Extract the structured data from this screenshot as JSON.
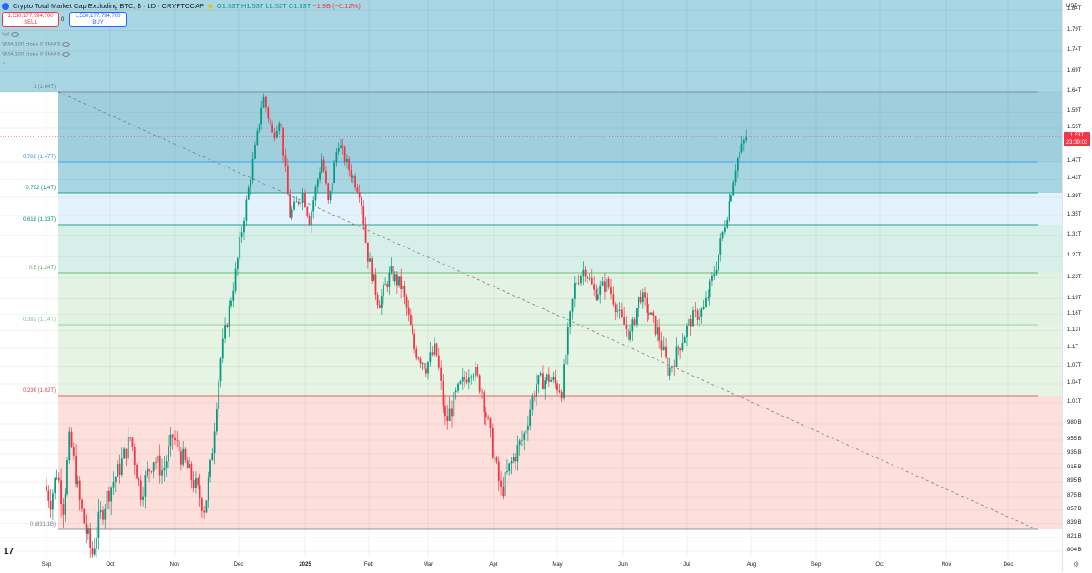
{
  "header": {
    "title": "Crypto Total Market Cap Excluding BTC, $ · 1D · CRYPTOCAP",
    "ohlc": {
      "open": "O1.53T",
      "high": "H1.53T",
      "low": "L1.52T",
      "close": "C1.53T",
      "change": "−1.9B (−0.12%)"
    }
  },
  "trade": {
    "sell_price": "1,530,177,794,700",
    "sell_label": "SELL",
    "spread": "0",
    "buy_price": "1,530,177,794,700",
    "buy_label": "BUY"
  },
  "indicators": [
    {
      "label": "Vol"
    },
    {
      "label": "SMA 100 close 0 SMA 5"
    },
    {
      "label": "SMA 200 close 0 SMA 5"
    }
  ],
  "price_axis": {
    "currency": "USD",
    "current_price": "1.53T",
    "countdown": "23:39:03",
    "ticks": [
      {
        "label": "1.84T",
        "value": 1.84
      },
      {
        "label": "1.79T",
        "value": 1.79
      },
      {
        "label": "1.74T",
        "value": 1.74
      },
      {
        "label": "1.69T",
        "value": 1.69
      },
      {
        "label": "1.64T",
        "value": 1.64
      },
      {
        "label": "1.59T",
        "value": 1.59
      },
      {
        "label": "1.55T",
        "value": 1.55
      },
      {
        "label": "1.47T",
        "value": 1.47
      },
      {
        "label": "1.43T",
        "value": 1.43
      },
      {
        "label": "1.39T",
        "value": 1.39
      },
      {
        "label": "1.35T",
        "value": 1.35
      },
      {
        "label": "1.31T",
        "value": 1.31
      },
      {
        "label": "1.27T",
        "value": 1.27
      },
      {
        "label": "1.23T",
        "value": 1.23
      },
      {
        "label": "1.19T",
        "value": 1.19
      },
      {
        "label": "1.16T",
        "value": 1.16
      },
      {
        "label": "1.13T",
        "value": 1.13
      },
      {
        "label": "1.1T",
        "value": 1.1
      },
      {
        "label": "1.07T",
        "value": 1.07
      },
      {
        "label": "1.04T",
        "value": 1.04
      },
      {
        "label": "1.01T",
        "value": 1.01
      },
      {
        "label": "980 B",
        "value": 0.98
      },
      {
        "label": "955 B",
        "value": 0.955
      },
      {
        "label": "935 B",
        "value": 0.935
      },
      {
        "label": "915 B",
        "value": 0.915
      },
      {
        "label": "895 B",
        "value": 0.895
      },
      {
        "label": "875 B",
        "value": 0.875
      },
      {
        "label": "857 B",
        "value": 0.857
      },
      {
        "label": "839 B",
        "value": 0.839
      },
      {
        "label": "821 B",
        "value": 0.821
      },
      {
        "label": "804 B",
        "value": 0.804
      }
    ]
  },
  "time_axis": {
    "labels": [
      {
        "label": "Sep",
        "month_index": 0,
        "bold": false
      },
      {
        "label": "Oct",
        "month_index": 1,
        "bold": false
      },
      {
        "label": "Nov",
        "month_index": 2,
        "bold": false
      },
      {
        "label": "Dec",
        "month_index": 3,
        "bold": false
      },
      {
        "label": "2025",
        "month_index": 4,
        "bold": true
      },
      {
        "label": "Feb",
        "month_index": 5,
        "bold": false
      },
      {
        "label": "Mar",
        "month_index": 6,
        "bold": false
      },
      {
        "label": "Apr",
        "month_index": 7,
        "bold": false
      },
      {
        "label": "May",
        "month_index": 8,
        "bold": false
      },
      {
        "label": "Jun",
        "month_index": 9,
        "bold": false
      },
      {
        "label": "Jul",
        "month_index": 10,
        "bold": false
      },
      {
        "label": "Aug",
        "month_index": 11,
        "bold": false
      },
      {
        "label": "Sep",
        "month_index": 12,
        "bold": false
      },
      {
        "label": "Oct",
        "month_index": 13,
        "bold": false
      },
      {
        "label": "Nov",
        "month_index": 14,
        "bold": false
      },
      {
        "label": "Dec",
        "month_index": 15,
        "bold": false
      }
    ]
  },
  "fib_levels": [
    {
      "label": "1 (1.64T)",
      "value": 1.64,
      "color": "#787b86",
      "zone": "#9fcfdd"
    },
    {
      "label": "0.786 (1.47T)",
      "value": 1.47,
      "color": "#2196f3",
      "zone": "#a8d5e2"
    },
    {
      "label": "0.702 (1.4T)",
      "value": 1.4,
      "color": "#00897b",
      "zone": "#e3f2fd"
    },
    {
      "label": "0.618 (1.33T)",
      "value": 1.33,
      "color": "#00897b",
      "zone": "#d7efe9"
    },
    {
      "label": "0.5 (1.24T)",
      "value": 1.24,
      "color": "#4caf50",
      "zone": "#e3f3e3"
    },
    {
      "label": "0.382 (1.14T)",
      "value": 1.14,
      "color": "#81c784",
      "zone": "#e6f4e4"
    },
    {
      "label": "0.236 (1.02T)",
      "value": 1.02,
      "color": "#f23645",
      "zone": "#fde0dc"
    },
    {
      "label": "0 (831.1B)",
      "value": 0.8311,
      "color": "#787b86",
      "zone": null
    }
  ],
  "colors": {
    "up": "#089981",
    "down": "#f23645",
    "top_zone": "#a8d6e3",
    "trend_line": "#787b86"
  },
  "chart_data": {
    "type": "candlestick",
    "x_range": [
      "2024-08-20",
      "2025-12-31"
    ],
    "y_range_T": [
      0.79,
      1.88
    ],
    "trend_line": {
      "from": {
        "month_index": 0.0,
        "value": 1.64
      },
      "to": {
        "month_index": 15.5,
        "value": 0.831
      }
    },
    "path_T": [
      [
        0.0,
        0.89
      ],
      [
        0.1,
        0.87
      ],
      [
        0.2,
        0.91
      ],
      [
        0.3,
        0.86
      ],
      [
        0.4,
        0.96
      ],
      [
        0.55,
        0.87
      ],
      [
        0.65,
        0.83
      ],
      [
        0.75,
        0.8
      ],
      [
        0.85,
        0.84
      ],
      [
        1.0,
        0.88
      ],
      [
        1.2,
        0.92
      ],
      [
        1.35,
        0.96
      ],
      [
        1.5,
        0.88
      ],
      [
        1.7,
        0.93
      ],
      [
        1.85,
        0.91
      ],
      [
        2.0,
        0.96
      ],
      [
        2.2,
        0.92
      ],
      [
        2.35,
        0.89
      ],
      [
        2.5,
        0.86
      ],
      [
        2.6,
        0.92
      ],
      [
        2.75,
        1.08
      ],
      [
        2.9,
        1.18
      ],
      [
        3.0,
        1.25
      ],
      [
        3.15,
        1.38
      ],
      [
        3.3,
        1.52
      ],
      [
        3.4,
        1.63
      ],
      [
        3.55,
        1.53
      ],
      [
        3.65,
        1.58
      ],
      [
        3.8,
        1.35
      ],
      [
        4.0,
        1.4
      ],
      [
        4.1,
        1.34
      ],
      [
        4.3,
        1.48
      ],
      [
        4.4,
        1.37
      ],
      [
        4.55,
        1.52
      ],
      [
        4.7,
        1.46
      ],
      [
        4.9,
        1.4
      ],
      [
        5.0,
        1.28
      ],
      [
        5.2,
        1.18
      ],
      [
        5.4,
        1.24
      ],
      [
        5.6,
        1.21
      ],
      [
        5.8,
        1.1
      ],
      [
        6.0,
        1.07
      ],
      [
        6.15,
        1.1
      ],
      [
        6.3,
        0.98
      ],
      [
        6.5,
        1.03
      ],
      [
        6.7,
        1.07
      ],
      [
        6.85,
        1.03
      ],
      [
        7.0,
        0.95
      ],
      [
        7.15,
        0.88
      ],
      [
        7.3,
        0.92
      ],
      [
        7.5,
        0.96
      ],
      [
        7.7,
        1.04
      ],
      [
        7.9,
        1.05
      ],
      [
        8.1,
        1.03
      ],
      [
        8.3,
        1.22
      ],
      [
        8.45,
        1.25
      ],
      [
        8.6,
        1.2
      ],
      [
        8.8,
        1.22
      ],
      [
        9.0,
        1.15
      ],
      [
        9.15,
        1.12
      ],
      [
        9.3,
        1.2
      ],
      [
        9.45,
        1.16
      ],
      [
        9.6,
        1.12
      ],
      [
        9.75,
        1.06
      ],
      [
        9.9,
        1.1
      ],
      [
        10.1,
        1.15
      ],
      [
        10.3,
        1.17
      ],
      [
        10.5,
        1.26
      ],
      [
        10.65,
        1.35
      ],
      [
        10.8,
        1.47
      ],
      [
        10.95,
        1.53
      ]
    ]
  }
}
